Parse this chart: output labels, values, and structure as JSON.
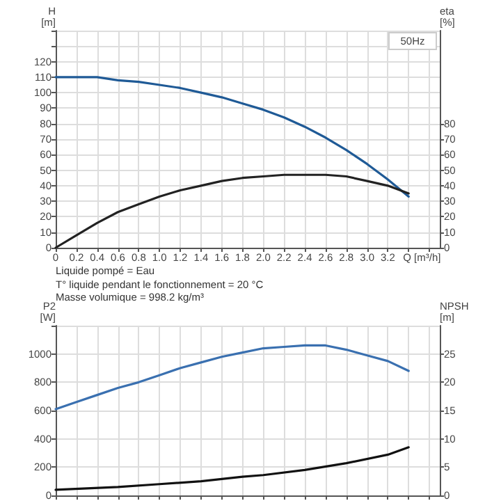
{
  "chart_data": [
    {
      "type": "line",
      "xlabel": "Q [m³/h]",
      "ylabel": "H [m]",
      "y2label": "eta [%]",
      "annotations": [
        "50Hz",
        "Liquide pompé = Eau",
        "T° liquide pendant le fonctionnement = 20 °C",
        "Masse volumique = 998.2 kg/m³"
      ],
      "xlim": [
        0,
        3.7
      ],
      "xticks": [
        0,
        0.2,
        0.4,
        0.6,
        0.8,
        {
          "value": 1,
          "label": "1.0"
        },
        1.2,
        1.4,
        1.6,
        1.8,
        {
          "value": 2,
          "label": "2.0"
        },
        2.2,
        2.4,
        2.6,
        2.8,
        {
          "value": 3,
          "label": "3.0"
        },
        3.2,
        {
          "value": 3.4,
          "label": null
        },
        {
          "value": 3.6,
          "label": null
        }
      ],
      "ylim": [
        0,
        140
      ],
      "yticks": [
        0,
        10,
        20,
        30,
        40,
        50,
        60,
        70,
        80,
        90,
        100,
        110,
        120,
        {
          "value": 130,
          "label": null
        },
        {
          "value": 140,
          "label": null
        }
      ],
      "y2lim": [
        0,
        140
      ],
      "y2ticks": [
        0,
        10,
        20,
        30,
        40,
        50,
        60,
        70,
        80
      ],
      "grid": true,
      "marker": "none",
      "line_style": "solid",
      "series": [
        {
          "color": "#1f5a96",
          "x": [
            0,
            0.2,
            0.4,
            0.6,
            0.8,
            1.0,
            1.2,
            1.4,
            1.6,
            1.8,
            2.0,
            2.2,
            2.4,
            2.6,
            2.8,
            3.0,
            3.2,
            3.4
          ],
          "values": [
            110,
            110,
            110,
            108,
            107,
            105,
            103,
            100,
            97,
            93,
            89,
            84,
            78,
            71,
            63,
            54,
            44,
            33
          ]
        },
        {
          "color": "#222222",
          "axis": "y2",
          "x": [
            0,
            0.2,
            0.4,
            0.6,
            0.8,
            1.0,
            1.2,
            1.4,
            1.6,
            1.8,
            2.0,
            2.2,
            2.4,
            2.6,
            2.8,
            3.0,
            3.2,
            3.4
          ],
          "values": [
            0,
            8,
            16,
            23,
            28,
            33,
            37,
            40,
            43,
            45,
            46,
            47,
            47,
            47,
            46,
            43,
            40,
            35
          ]
        }
      ]
    },
    {
      "type": "line",
      "ylabel": "P2 [W]",
      "y2label": "NPSH [m]",
      "tick_labels": "y",
      "xlim": [
        0,
        3.7
      ],
      "xticks": [
        0,
        0.2,
        0.4,
        0.6,
        0.8,
        1.0,
        1.2,
        1.4,
        1.6,
        1.8,
        2.0,
        2.2,
        2.4,
        2.6,
        2.8,
        3.0,
        3.2,
        3.4,
        3.6
      ],
      "ylim": [
        0,
        1200
      ],
      "yticks": [
        0,
        200,
        400,
        600,
        800,
        1000,
        {
          "value": 1200,
          "label": null
        }
      ],
      "y2lim": [
        0,
        30
      ],
      "y2ticks": [
        0,
        5,
        10,
        15,
        20,
        25
      ],
      "grid": true,
      "marker": "none",
      "line_style": "solid",
      "series": [
        {
          "color": "#3a70b0",
          "x": [
            0,
            0.2,
            0.4,
            0.6,
            0.8,
            1.0,
            1.2,
            1.4,
            1.6,
            1.8,
            2.0,
            2.2,
            2.4,
            2.6,
            2.8,
            3.0,
            3.2,
            3.4
          ],
          "values": [
            610,
            660,
            710,
            760,
            800,
            850,
            900,
            940,
            980,
            1010,
            1040,
            1050,
            1060,
            1060,
            1030,
            990,
            950,
            880
          ]
        },
        {
          "color": "#111111",
          "axis": "y2",
          "x": [
            0,
            0.6,
            1.0,
            1.4,
            1.8,
            2.0,
            2.4,
            2.8,
            3.2,
            3.4
          ],
          "values": [
            1,
            1.5,
            2,
            2.5,
            3.3,
            3.6,
            4.5,
            5.7,
            7.2,
            8.5
          ]
        }
      ]
    }
  ]
}
